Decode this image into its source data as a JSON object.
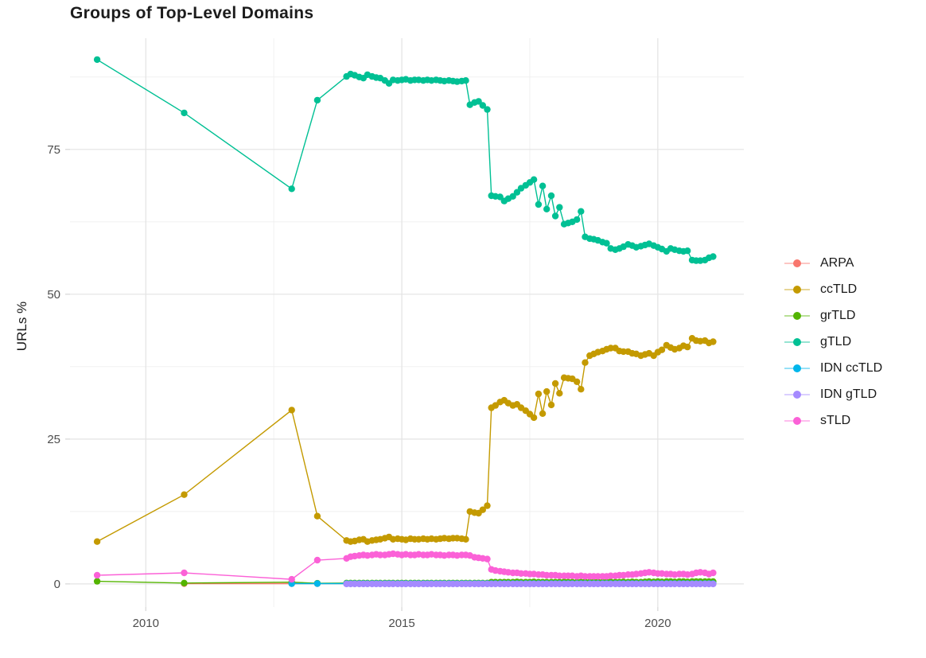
{
  "title": "Groups of Top-Level Domains",
  "ylabel": "URLs %",
  "chart_data": {
    "type": "line",
    "title": "Groups of Top-Level Domains",
    "xlabel": "",
    "ylabel": "URLs %",
    "grid": true,
    "legend_position": "right",
    "x_axis": {
      "range": [
        2008.52,
        2021.68
      ],
      "ticks": [
        2010,
        2015,
        2020
      ],
      "tick_labels": [
        "2010",
        "2015",
        "2020"
      ],
      "minor_ticks": [
        2012.5,
        2017.5
      ]
    },
    "y_axis": {
      "range": [
        -4.0,
        94.2
      ],
      "ticks": [
        0,
        25,
        50,
        75
      ],
      "tick_labels": [
        "0",
        "25",
        "50",
        "75"
      ],
      "minor_ticks": [
        12.5,
        37.5,
        62.5,
        87.5
      ]
    },
    "x_monthly": [
      2013.92,
      2014.0,
      2014.08,
      2014.17,
      2014.25,
      2014.33,
      2014.42,
      2014.5,
      2014.58,
      2014.67,
      2014.75,
      2014.83,
      2014.92,
      2015.0,
      2015.08,
      2015.17,
      2015.25,
      2015.33,
      2015.42,
      2015.5,
      2015.58,
      2015.67,
      2015.75,
      2015.83,
      2015.92,
      2016.0,
      2016.08,
      2016.17,
      2016.25,
      2016.33,
      2016.42,
      2016.5,
      2016.58,
      2016.67,
      2016.75,
      2016.83,
      2016.92,
      2017.0,
      2017.08,
      2017.17,
      2017.25,
      2017.33,
      2017.42,
      2017.5,
      2017.58,
      2017.67,
      2017.75,
      2017.83,
      2017.92,
      2018.0,
      2018.08,
      2018.17,
      2018.25,
      2018.33,
      2018.42,
      2018.5,
      2018.58,
      2018.67,
      2018.75,
      2018.83,
      2018.92,
      2019.0,
      2019.08,
      2019.17,
      2019.25,
      2019.33,
      2019.42,
      2019.5,
      2019.58,
      2019.67,
      2019.75,
      2019.83,
      2019.92,
      2020.0,
      2020.08,
      2020.17,
      2020.25,
      2020.33,
      2020.42,
      2020.5,
      2020.58,
      2020.67,
      2020.75,
      2020.83,
      2020.92,
      2021.0,
      2021.08
    ],
    "series": [
      {
        "name": "ARPA",
        "color": "#F8766D",
        "x_prefix": [
          2010.75,
          2012.85,
          2013.35
        ],
        "y_prefix": [
          0.05,
          0.05,
          0.05
        ],
        "y_monthly": [
          0.05,
          0.05,
          0.05,
          0.05,
          0.05,
          0.05,
          0.05,
          0.05,
          0.05,
          0.05,
          0.05,
          0.05,
          0.05,
          0.05,
          0.05,
          0.05,
          0.05,
          0.05,
          0.05,
          0.05,
          0.05,
          0.05,
          0.05,
          0.05,
          0.05,
          0.05,
          0.05,
          0.05,
          0.05,
          0.05,
          0.05,
          0.05,
          0.05,
          0.05,
          0.05,
          0.05,
          0.05,
          0.05,
          0.05,
          0.05,
          0.05,
          0.05,
          0.05,
          0.05,
          0.05,
          0.05,
          0.05,
          0.05,
          0.05,
          0.05,
          0.05,
          0.05,
          0.05,
          0.05,
          0.05,
          0.05,
          0.05,
          0.05,
          0.05,
          0.05,
          0.05,
          0.05,
          0.05,
          0.05,
          0.05,
          0.05,
          0.05,
          0.05,
          0.05,
          0.05,
          0.05,
          0.05,
          0.05,
          0.05,
          0.05,
          0.05,
          0.05,
          0.05,
          0.05,
          0.05,
          0.05,
          0.05,
          0.05,
          0.05,
          0.05,
          0.05,
          0.05
        ]
      },
      {
        "name": "ccTLD",
        "color": "#C49A00",
        "x_prefix": [
          2009.05,
          2010.75,
          2012.85,
          2013.35
        ],
        "y_prefix": [
          7.3,
          15.4,
          30.0,
          11.7
        ],
        "y_monthly": [
          7.5,
          7.3,
          7.4,
          7.6,
          7.7,
          7.3,
          7.5,
          7.6,
          7.7,
          7.9,
          8.1,
          7.7,
          7.8,
          7.7,
          7.6,
          7.8,
          7.7,
          7.7,
          7.8,
          7.7,
          7.8,
          7.7,
          7.8,
          7.9,
          7.8,
          7.9,
          7.9,
          7.8,
          7.7,
          12.5,
          12.3,
          12.2,
          12.8,
          13.5,
          30.4,
          30.8,
          31.4,
          31.7,
          31.2,
          30.8,
          31.0,
          30.4,
          29.9,
          29.3,
          28.7,
          32.8,
          29.4,
          33.2,
          30.9,
          34.6,
          32.9,
          35.6,
          35.5,
          35.4,
          34.9,
          33.6,
          38.2,
          39.4,
          39.7,
          40.0,
          40.2,
          40.5,
          40.7,
          40.7,
          40.2,
          40.1,
          40.1,
          39.8,
          39.7,
          39.4,
          39.6,
          39.8,
          39.4,
          40.0,
          40.4,
          41.2,
          40.8,
          40.5,
          40.7,
          41.1,
          40.9,
          42.4,
          42.0,
          41.9,
          42.0,
          41.6,
          41.8
        ]
      },
      {
        "name": "grTLD",
        "color": "#53B400",
        "x_prefix": [
          2009.05,
          2010.75,
          2012.85,
          2013.35
        ],
        "y_prefix": [
          0.45,
          0.15,
          0.3,
          0.1
        ],
        "y_monthly": [
          0.15,
          0.15,
          0.15,
          0.15,
          0.15,
          0.15,
          0.15,
          0.15,
          0.15,
          0.15,
          0.15,
          0.15,
          0.15,
          0.15,
          0.15,
          0.15,
          0.15,
          0.15,
          0.15,
          0.15,
          0.15,
          0.15,
          0.15,
          0.15,
          0.15,
          0.15,
          0.15,
          0.15,
          0.15,
          0.15,
          0.15,
          0.15,
          0.15,
          0.15,
          0.3,
          0.3,
          0.3,
          0.3,
          0.3,
          0.3,
          0.35,
          0.3,
          0.3,
          0.3,
          0.35,
          0.3,
          0.3,
          0.3,
          0.3,
          0.3,
          0.3,
          0.35,
          0.3,
          0.3,
          0.3,
          0.3,
          0.35,
          0.3,
          0.3,
          0.35,
          0.3,
          0.3,
          0.35,
          0.3,
          0.3,
          0.35,
          0.3,
          0.35,
          0.3,
          0.3,
          0.35,
          0.4,
          0.35,
          0.4,
          0.35,
          0.4,
          0.4,
          0.35,
          0.4,
          0.4,
          0.35,
          0.4,
          0.4,
          0.4,
          0.4,
          0.4,
          0.4
        ]
      },
      {
        "name": "gTLD",
        "color": "#00C094",
        "x_prefix": [
          2009.05,
          2010.75,
          2012.85,
          2013.35
        ],
        "y_prefix": [
          90.5,
          81.3,
          68.2,
          83.5
        ],
        "y_monthly": [
          87.6,
          88.0,
          87.8,
          87.5,
          87.3,
          87.9,
          87.6,
          87.4,
          87.3,
          86.9,
          86.4,
          87.0,
          86.9,
          87.0,
          87.1,
          86.9,
          87.0,
          87.0,
          86.9,
          87.0,
          86.9,
          87.0,
          86.9,
          86.8,
          86.9,
          86.8,
          86.7,
          86.8,
          86.9,
          82.7,
          83.1,
          83.3,
          82.6,
          81.9,
          67.0,
          66.9,
          66.8,
          66.1,
          66.5,
          66.9,
          67.6,
          68.3,
          68.8,
          69.3,
          69.8,
          65.5,
          68.7,
          64.7,
          67.0,
          63.5,
          65.0,
          62.1,
          62.3,
          62.5,
          62.9,
          64.3,
          59.9,
          59.6,
          59.5,
          59.3,
          59.0,
          58.8,
          57.9,
          57.7,
          57.9,
          58.2,
          58.6,
          58.4,
          58.1,
          58.3,
          58.5,
          58.7,
          58.4,
          58.1,
          57.8,
          57.4,
          57.9,
          57.7,
          57.5,
          57.4,
          57.5,
          55.9,
          55.8,
          55.8,
          55.9,
          56.3,
          56.5
        ]
      },
      {
        "name": "IDN ccTLD",
        "color": "#00B6EB",
        "x_prefix": [
          2012.85,
          2013.35
        ],
        "y_prefix": [
          0.05,
          0.05
        ],
        "y_monthly": [
          0.05,
          0.05,
          0.05,
          0.05,
          0.05,
          0.05,
          0.05,
          0.05,
          0.05,
          0.05,
          0.05,
          0.05,
          0.05,
          0.05,
          0.05,
          0.05,
          0.05,
          0.05,
          0.05,
          0.05,
          0.05,
          0.05,
          0.05,
          0.05,
          0.05,
          0.05,
          0.05,
          0.05,
          0.05,
          0.05,
          0.05,
          0.05,
          0.05,
          0.05,
          0.05,
          0.05,
          0.05,
          0.05,
          0.05,
          0.05,
          0.05,
          0.05,
          0.05,
          0.05,
          0.05,
          0.05,
          0.05,
          0.05,
          0.05,
          0.05,
          0.05,
          0.05,
          0.05,
          0.05,
          0.05,
          0.05,
          0.05,
          0.05,
          0.05,
          0.05,
          0.05,
          0.05,
          0.05,
          0.05,
          0.05,
          0.05,
          0.05,
          0.05,
          0.05,
          0.05,
          0.05,
          0.05,
          0.05,
          0.05,
          0.05,
          0.05,
          0.05,
          0.05,
          0.05,
          0.05,
          0.05,
          0.05,
          0.05,
          0.05,
          0.05,
          0.05,
          0.05
        ]
      },
      {
        "name": "IDN gTLD",
        "color": "#A58AFF",
        "x_prefix": [],
        "y_prefix": [],
        "y_monthly": [
          0.0,
          0.0,
          0.0,
          0.0,
          0.0,
          0.0,
          0.0,
          0.0,
          0.0,
          0.0,
          0.0,
          0.0,
          0.0,
          0.0,
          0.0,
          0.0,
          0.0,
          0.0,
          0.0,
          0.0,
          0.0,
          0.0,
          0.0,
          0.0,
          0.0,
          0.0,
          0.0,
          0.0,
          0.0,
          0.0,
          0.0,
          0.0,
          0.0,
          0.0,
          0.0,
          0.0,
          0.0,
          0.0,
          0.0,
          0.0,
          0.0,
          0.0,
          0.0,
          0.0,
          0.0,
          0.0,
          0.0,
          0.0,
          0.0,
          0.0,
          0.0,
          0.0,
          0.0,
          0.0,
          0.0,
          0.0,
          0.0,
          0.0,
          0.0,
          0.0,
          0.0,
          0.0,
          0.0,
          0.0,
          0.0,
          0.0,
          0.0,
          0.0,
          0.0,
          0.0,
          0.0,
          0.0,
          0.0,
          0.0,
          0.0,
          0.0,
          0.0,
          0.0,
          0.0,
          0.0,
          0.0,
          0.0,
          0.0,
          0.0,
          0.0,
          0.0,
          0.0
        ]
      },
      {
        "name": "sTLD",
        "color": "#FB61D7",
        "x_prefix": [
          2009.05,
          2010.75,
          2012.85,
          2013.35
        ],
        "y_prefix": [
          1.5,
          1.9,
          0.8,
          4.1
        ],
        "y_monthly": [
          4.4,
          4.7,
          4.8,
          4.9,
          5.0,
          4.9,
          5.0,
          5.1,
          5.0,
          5.0,
          5.1,
          5.2,
          5.1,
          5.0,
          5.1,
          5.0,
          5.0,
          5.1,
          5.0,
          5.0,
          5.1,
          5.0,
          5.0,
          4.9,
          5.0,
          5.0,
          4.9,
          5.0,
          5.0,
          4.9,
          4.6,
          4.5,
          4.4,
          4.3,
          2.5,
          2.3,
          2.2,
          2.1,
          2.0,
          1.9,
          1.9,
          1.8,
          1.8,
          1.7,
          1.7,
          1.6,
          1.6,
          1.5,
          1.5,
          1.5,
          1.4,
          1.4,
          1.4,
          1.4,
          1.3,
          1.4,
          1.3,
          1.3,
          1.3,
          1.3,
          1.3,
          1.3,
          1.4,
          1.4,
          1.5,
          1.5,
          1.6,
          1.6,
          1.7,
          1.8,
          1.9,
          2.0,
          1.9,
          1.8,
          1.8,
          1.7,
          1.7,
          1.6,
          1.7,
          1.7,
          1.6,
          1.7,
          1.9,
          2.0,
          1.9,
          1.7,
          1.9
        ]
      }
    ]
  }
}
